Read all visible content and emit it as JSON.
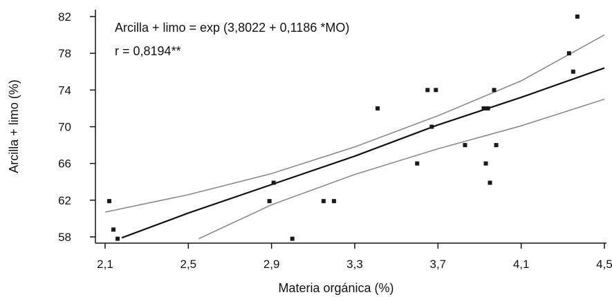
{
  "chart_data": {
    "type": "scatter",
    "xlabel": "Materia orgánica (%)",
    "ylabel": "Arcilla + limo (%)",
    "xlim": [
      2.1,
      4.5
    ],
    "ylim": [
      58,
      82
    ],
    "x_ticks": [
      2.1,
      2.5,
      2.9,
      3.3,
      3.7,
      4.1,
      4.5
    ],
    "x_tick_labels": [
      "2,1",
      "2,5",
      "2,9",
      "3,3",
      "3,7",
      "4,1",
      "4,5"
    ],
    "y_ticks": [
      58,
      62,
      66,
      70,
      74,
      78,
      82
    ],
    "y_tick_labels": [
      "58",
      "62",
      "66",
      "70",
      "74",
      "78",
      "82"
    ],
    "annotations": [
      "Arcilla + limo = exp (3,8022 + 0,1186 *MO)",
      "r = 0,8194**"
    ],
    "grid": false,
    "series": [
      {
        "points": [
          [
            2.12,
            61.9
          ],
          [
            2.14,
            58.8
          ],
          [
            2.16,
            57.8
          ],
          [
            2.89,
            61.9
          ],
          [
            2.91,
            63.9
          ],
          [
            3.0,
            57.8
          ],
          [
            3.15,
            61.9
          ],
          [
            3.2,
            61.9
          ],
          [
            3.41,
            72.0
          ],
          [
            3.6,
            66.0
          ],
          [
            3.65,
            74.0
          ],
          [
            3.67,
            70.0
          ],
          [
            3.69,
            74.0
          ],
          [
            3.83,
            68.0
          ],
          [
            3.92,
            72.0
          ],
          [
            3.93,
            66.0
          ],
          [
            3.94,
            72.0
          ],
          [
            3.95,
            63.9
          ],
          [
            3.97,
            74.0
          ],
          [
            3.98,
            68.0
          ],
          [
            4.33,
            78.0
          ],
          [
            4.35,
            76.0
          ],
          [
            4.37,
            82.0
          ]
        ]
      }
    ],
    "fitted_curve": [
      [
        2.18,
        57.9
      ],
      [
        2.5,
        60.6
      ],
      [
        2.9,
        63.7
      ],
      [
        3.3,
        66.8
      ],
      [
        3.7,
        70.2
      ],
      [
        4.1,
        73.2
      ],
      [
        4.5,
        76.4
      ]
    ],
    "confidence_upper": [
      [
        2.1,
        60.7
      ],
      [
        2.5,
        62.6
      ],
      [
        2.9,
        64.9
      ],
      [
        3.3,
        67.8
      ],
      [
        3.7,
        71.2
      ],
      [
        4.1,
        75.0
      ],
      [
        4.5,
        80.0
      ]
    ],
    "confidence_lower": [
      [
        2.55,
        57.8
      ],
      [
        2.9,
        61.5
      ],
      [
        3.3,
        64.8
      ],
      [
        3.7,
        67.6
      ],
      [
        4.1,
        70.1
      ],
      [
        4.5,
        73.0
      ]
    ]
  }
}
